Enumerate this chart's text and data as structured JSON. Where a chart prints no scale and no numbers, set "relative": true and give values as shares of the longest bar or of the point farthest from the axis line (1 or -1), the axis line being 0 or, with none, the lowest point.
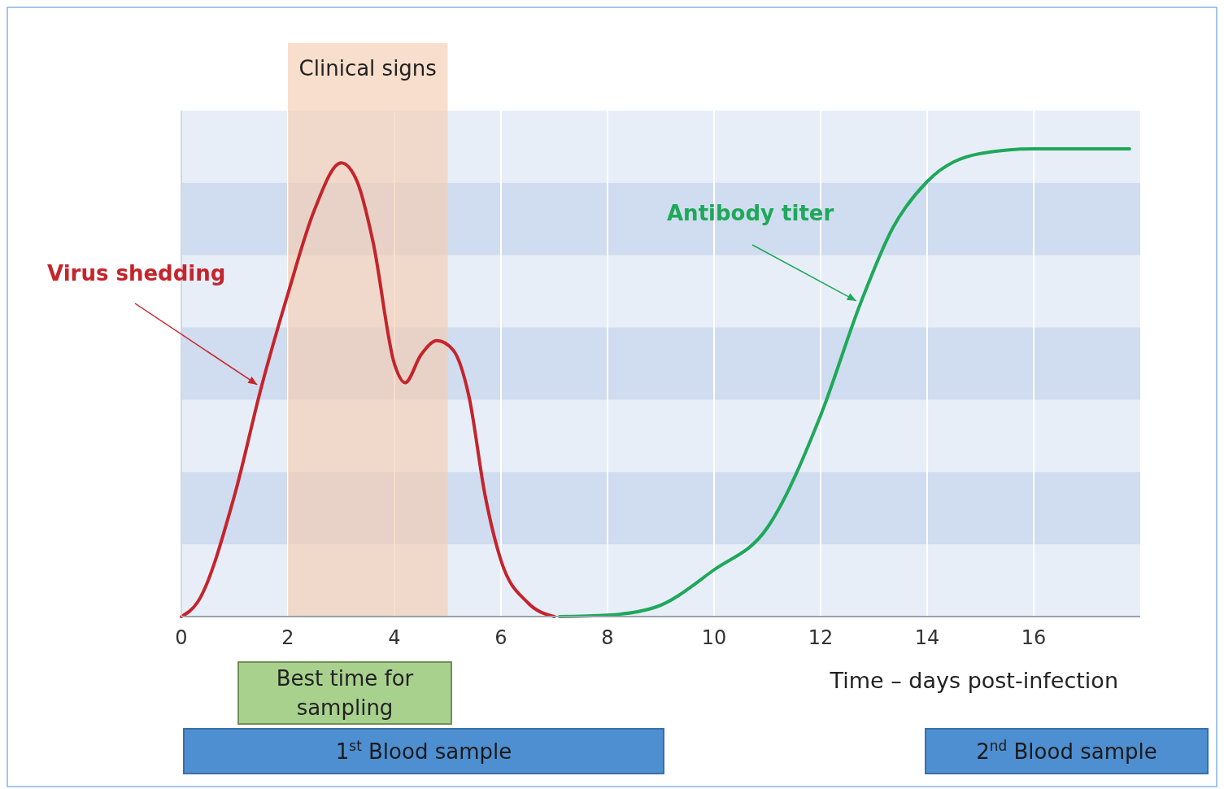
{
  "chart_data": {
    "type": "line",
    "relative": true,
    "xlabel": "Time – days post-infection",
    "xlim": [
      0,
      18
    ],
    "xticks": [
      0,
      2,
      4,
      6,
      8,
      10,
      12,
      14,
      16
    ],
    "grid": "x",
    "legend": false,
    "marker": "none",
    "line_style": "solid",
    "series": [
      {
        "name": "Virus shedding",
        "color": "#c4242b",
        "x": [
          0,
          0.3,
          1,
          1.5,
          2,
          2.5,
          3,
          3.3,
          3.6,
          4,
          4.2,
          4.5,
          4.8,
          5.1,
          5.4,
          5.7,
          6,
          6.5,
          7
        ],
        "values": [
          0,
          0.03,
          0.26,
          0.49,
          0.69,
          0.87,
          0.97,
          0.93,
          0.8,
          0.54,
          0.5,
          0.56,
          0.59,
          0.57,
          0.47,
          0.26,
          0.12,
          0.03,
          0
        ]
      },
      {
        "name": "Antibody titer",
        "color": "#1ea85a",
        "x": [
          7.1,
          8,
          8.9,
          10,
          11,
          12,
          12.75,
          13.35,
          14,
          15,
          16,
          17.8
        ],
        "values": [
          0,
          0.003,
          0.02,
          0.1,
          0.19,
          0.43,
          0.67,
          0.83,
          0.93,
          0.99,
          1,
          1
        ]
      }
    ],
    "bands": [
      {
        "axis": "x",
        "from": 2,
        "to": 5,
        "label": "Clinical signs",
        "color": "#f5cdb0"
      }
    ],
    "annotations": [
      "Best time for sampling",
      "1$^{st}$ Blood sample",
      "2$^{nd}$ Blood sample"
    ]
  }
}
